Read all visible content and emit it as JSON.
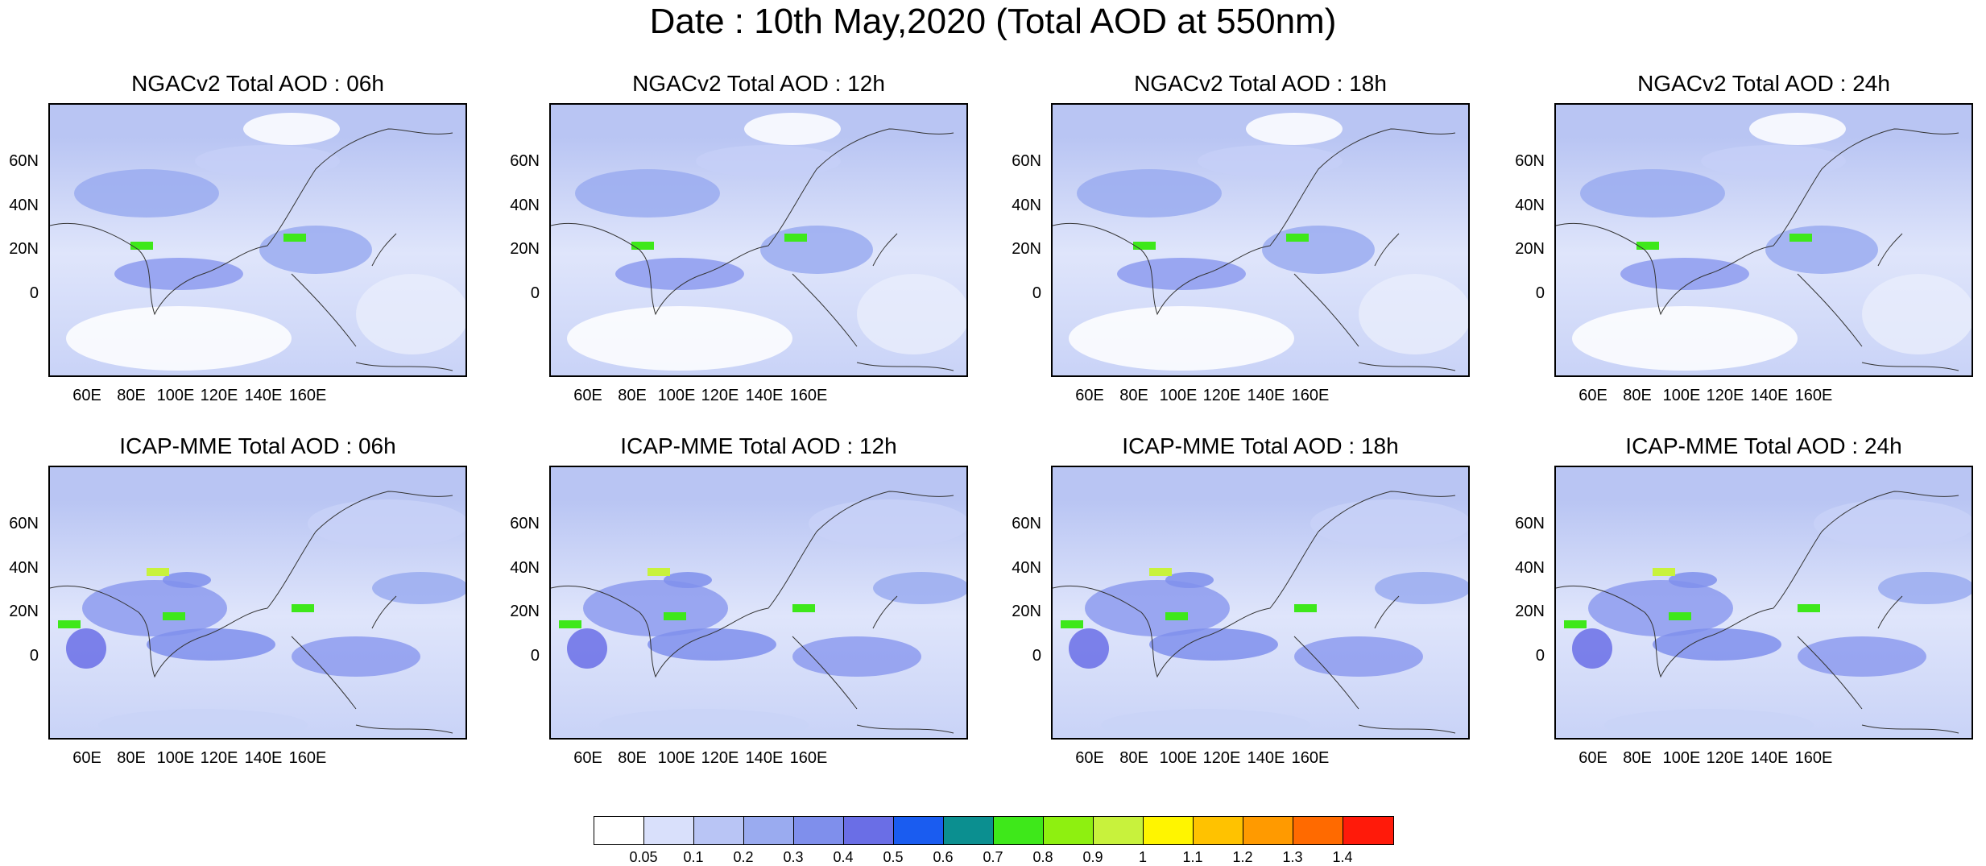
{
  "title": "Date : 10th May,2020 (Total AOD at 550nm)",
  "panels": [
    {
      "title": "NGACv2 Total AOD : 06h",
      "row": 0,
      "col": 0
    },
    {
      "title": "NGACv2 Total AOD : 12h",
      "row": 0,
      "col": 1
    },
    {
      "title": "NGACv2 Total AOD : 18h",
      "row": 0,
      "col": 2
    },
    {
      "title": "NGACv2 Total AOD : 24h",
      "row": 0,
      "col": 3
    },
    {
      "title": "ICAP-MME Total AOD : 06h",
      "row": 1,
      "col": 0
    },
    {
      "title": "ICAP-MME Total AOD : 12h",
      "row": 1,
      "col": 1
    },
    {
      "title": "ICAP-MME Total AOD : 18h",
      "row": 1,
      "col": 2
    },
    {
      "title": "ICAP-MME Total AOD : 24h",
      "row": 1,
      "col": 3
    }
  ],
  "lat_labels": [
    "60N",
    "40N",
    "20N",
    "0"
  ],
  "lon_labels": [
    "60E",
    "80E",
    "100E",
    "120E",
    "140E",
    "160E"
  ],
  "colorbar": {
    "labels": [
      "0.05",
      "0.1",
      "0.2",
      "0.3",
      "0.4",
      "0.5",
      "0.6",
      "0.7",
      "0.8",
      "0.9",
      "1",
      "1.1",
      "1.2",
      "1.3",
      "1.4"
    ],
    "colors": [
      "#ffffff",
      "#d9e0fb",
      "#b9c5f5",
      "#9aabf0",
      "#7f8fec",
      "#6a6ee6",
      "#1a5cf0",
      "#0b8f90",
      "#3ee81a",
      "#8ef010",
      "#c8f23c",
      "#fff500",
      "#ffc200",
      "#ff9a00",
      "#ff6a00",
      "#ff1a0a"
    ]
  }
}
